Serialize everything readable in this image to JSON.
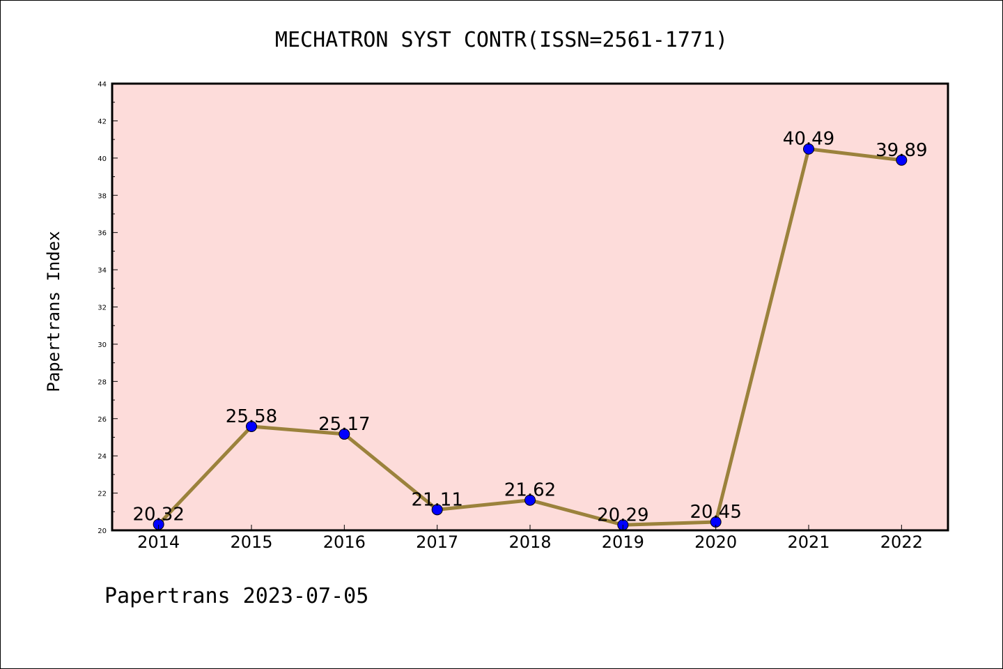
{
  "chart_data": {
    "type": "line",
    "title": "MECHATRON SYST CONTR(ISSN=2561-1771)",
    "xlabel": "",
    "ylabel": "Papertrans Index",
    "categories": [
      "2014",
      "2015",
      "2016",
      "2017",
      "2018",
      "2019",
      "2020",
      "2021",
      "2022"
    ],
    "series": [
      {
        "values": [
          20.32,
          25.58,
          25.17,
          21.11,
          21.62,
          20.29,
          20.45,
          40.49,
          39.89
        ],
        "labels": [
          "20.32",
          "25.58",
          "25.17",
          "21.11",
          "21.62",
          "20.29",
          "20.45",
          "40.49",
          "39.89"
        ],
        "line_color": "#9b823c",
        "marker_color": "#0000ff"
      }
    ],
    "ylim": [
      20,
      44
    ],
    "yticks": [
      "20",
      "22",
      "24",
      "26",
      "28",
      "30",
      "32",
      "34",
      "36",
      "38",
      "40",
      "42",
      "44"
    ],
    "grid": false,
    "legend": "none",
    "plot_background": "#fddcda"
  },
  "footer": {
    "text": "Papertrans 2023-07-05"
  }
}
